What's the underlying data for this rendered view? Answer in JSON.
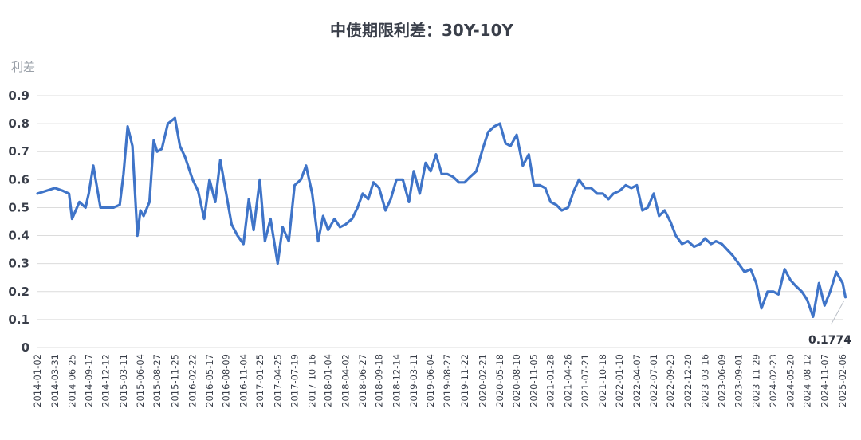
{
  "chart_data": {
    "type": "line",
    "title": "中债期限利差：30Y-10Y",
    "ylabel": "利差",
    "xlabel": "",
    "ylim": [
      0,
      0.9
    ],
    "yticks": [
      "0",
      "0.1",
      "0.2",
      "0.3",
      "0.4",
      "0.5",
      "0.6",
      "0.7",
      "0.8",
      "0.9"
    ],
    "grid": "horizontal",
    "legend": "none",
    "line_color": "#3f74c8",
    "x_ticks": [
      "2014-01-02",
      "2014-03-31",
      "2014-06-25",
      "2014-09-17",
      "2014-12-12",
      "2015-03-11",
      "2015-06-04",
      "2015-08-27",
      "2015-11-25",
      "2016-02-22",
      "2016-05-17",
      "2016-08-09",
      "2016-11-04",
      "2017-01-25",
      "2017-04-25",
      "2017-07-19",
      "2017-10-16",
      "2018-01-04",
      "2018-04-02",
      "2018-06-27",
      "2018-09-18",
      "2018-12-14",
      "2019-03-11",
      "2019-06-04",
      "2019-08-27",
      "2019-11-22",
      "2020-02-21",
      "2020-05-18",
      "2020-08-10",
      "2020-11-05",
      "2021-01-28",
      "2021-04-26",
      "2021-07-21",
      "2021-10-18",
      "2022-01-10",
      "2022-04-07",
      "2022-07-01",
      "2022-09-23",
      "2022-12-20",
      "2023-03-16",
      "2023-06-09",
      "2023-09-01",
      "2023-11-29",
      "2024-02-23",
      "2024-05-20",
      "2024-08-12",
      "2024-11-07",
      "2025-02-06"
    ],
    "x": [
      "2014-01-02",
      "2014-02-15",
      "2014-03-31",
      "2014-05-10",
      "2014-06-10",
      "2014-06-25",
      "2014-08-01",
      "2014-09-01",
      "2014-09-17",
      "2014-10-10",
      "2014-11-15",
      "2014-12-12",
      "2015-01-20",
      "2015-02-20",
      "2015-03-11",
      "2015-04-01",
      "2015-04-25",
      "2015-05-20",
      "2015-06-04",
      "2015-06-20",
      "2015-07-20",
      "2015-08-10",
      "2015-08-27",
      "2015-09-20",
      "2015-10-20",
      "2015-11-25",
      "2015-12-20",
      "2016-01-15",
      "2016-02-22",
      "2016-03-20",
      "2016-04-20",
      "2016-05-17",
      "2016-06-15",
      "2016-07-10",
      "2016-08-09",
      "2016-09-05",
      "2016-10-05",
      "2016-11-04",
      "2016-12-01",
      "2016-12-25",
      "2017-01-25",
      "2017-02-20",
      "2017-03-20",
      "2017-04-25",
      "2017-05-20",
      "2017-06-20",
      "2017-07-19",
      "2017-08-20",
      "2017-09-15",
      "2017-10-16",
      "2017-11-15",
      "2017-12-10",
      "2018-01-04",
      "2018-02-05",
      "2018-03-05",
      "2018-04-02",
      "2018-05-05",
      "2018-06-01",
      "2018-06-27",
      "2018-07-25",
      "2018-08-20",
      "2018-09-18",
      "2018-10-20",
      "2018-11-15",
      "2018-12-14",
      "2019-01-15",
      "2019-02-15",
      "2019-03-11",
      "2019-04-10",
      "2019-05-10",
      "2019-06-04",
      "2019-07-01",
      "2019-07-30",
      "2019-08-27",
      "2019-09-25",
      "2019-10-25",
      "2019-11-22",
      "2019-12-20",
      "2020-01-20",
      "2020-02-21",
      "2020-03-20",
      "2020-04-20",
      "2020-05-18",
      "2020-06-15",
      "2020-07-10",
      "2020-08-10",
      "2020-09-10",
      "2020-10-10",
      "2020-11-05",
      "2020-12-05",
      "2021-01-01",
      "2021-01-28",
      "2021-02-25",
      "2021-03-25",
      "2021-04-26",
      "2021-05-25",
      "2021-06-20",
      "2021-07-21",
      "2021-08-20",
      "2021-09-20",
      "2021-10-18",
      "2021-11-15",
      "2021-12-10",
      "2022-01-10",
      "2022-02-10",
      "2022-03-10",
      "2022-04-07",
      "2022-05-05",
      "2022-06-01",
      "2022-07-01",
      "2022-07-28",
      "2022-08-25",
      "2022-09-23",
      "2022-10-20",
      "2022-11-20",
      "2022-12-20",
      "2023-01-20",
      "2023-02-20",
      "2023-03-16",
      "2023-04-15",
      "2023-05-10",
      "2023-06-09",
      "2023-07-05",
      "2023-08-01",
      "2023-09-01",
      "2023-10-01",
      "2023-11-01",
      "2023-11-29",
      "2023-12-25",
      "2024-01-25",
      "2024-02-23",
      "2024-03-20",
      "2024-04-20",
      "2024-05-20",
      "2024-06-15",
      "2024-07-15",
      "2024-08-12",
      "2024-09-10",
      "2024-10-10",
      "2024-11-07",
      "2024-12-05",
      "2025-01-05",
      "2025-02-06",
      "2025-02-20"
    ],
    "series": [
      {
        "name": "",
        "values": [
          0.55,
          0.56,
          0.57,
          0.56,
          0.55,
          0.46,
          0.52,
          0.5,
          0.55,
          0.65,
          0.5,
          0.5,
          0.5,
          0.51,
          0.62,
          0.79,
          0.72,
          0.4,
          0.49,
          0.47,
          0.52,
          0.74,
          0.7,
          0.71,
          0.8,
          0.82,
          0.72,
          0.68,
          0.6,
          0.56,
          0.46,
          0.6,
          0.52,
          0.67,
          0.55,
          0.44,
          0.4,
          0.37,
          0.53,
          0.42,
          0.6,
          0.38,
          0.46,
          0.3,
          0.43,
          0.38,
          0.58,
          0.6,
          0.65,
          0.55,
          0.38,
          0.47,
          0.42,
          0.46,
          0.43,
          0.44,
          0.46,
          0.5,
          0.55,
          0.53,
          0.59,
          0.57,
          0.49,
          0.53,
          0.6,
          0.6,
          0.52,
          0.63,
          0.55,
          0.66,
          0.63,
          0.69,
          0.62,
          0.62,
          0.61,
          0.59,
          0.59,
          0.61,
          0.63,
          0.71,
          0.77,
          0.79,
          0.8,
          0.73,
          0.72,
          0.76,
          0.65,
          0.69,
          0.58,
          0.58,
          0.57,
          0.52,
          0.51,
          0.49,
          0.5,
          0.56,
          0.6,
          0.57,
          0.57,
          0.55,
          0.55,
          0.53,
          0.55,
          0.56,
          0.58,
          0.57,
          0.58,
          0.49,
          0.5,
          0.55,
          0.47,
          0.49,
          0.45,
          0.4,
          0.37,
          0.38,
          0.36,
          0.37,
          0.39,
          0.37,
          0.38,
          0.37,
          0.35,
          0.33,
          0.3,
          0.27,
          0.28,
          0.23,
          0.14,
          0.2,
          0.2,
          0.19,
          0.28,
          0.24,
          0.22,
          0.2,
          0.17,
          0.11,
          0.23,
          0.15,
          0.2,
          0.27,
          0.23,
          0.18
        ]
      }
    ],
    "annotation": {
      "label": "0.1774",
      "x": "2025-02-20",
      "y": 0.1774
    }
  }
}
